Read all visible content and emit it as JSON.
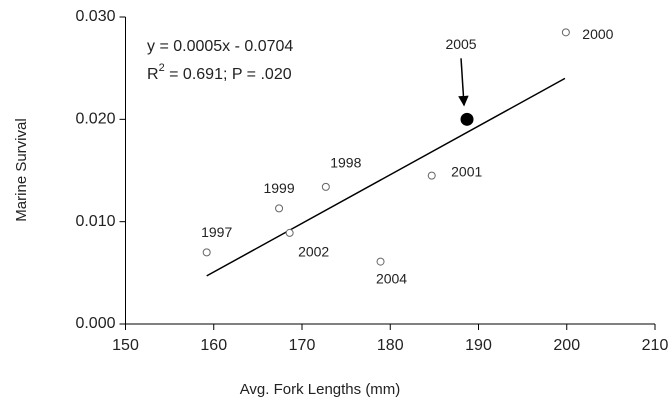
{
  "chart_data": {
    "type": "scatter",
    "x_label": "Avg. Fork Lengths (mm)",
    "y_label": "Marine Survival",
    "equation": "y = 0.0005x - 0.0704",
    "stats": {
      "prefix": "R",
      "superscript": "2",
      "text": " = 0.691; P = .020"
    },
    "points": {
      "labels": [
        "1997",
        "1998",
        "1999",
        "2000",
        "2001",
        "2002",
        "2004",
        "2005"
      ],
      "x": [
        159.2,
        172.7,
        167.4,
        199.9,
        184.7,
        168.6,
        178.9,
        188.7
      ],
      "y": [
        0.007,
        0.0134,
        0.0113,
        0.0285,
        0.0145,
        0.0089,
        0.0061,
        0.02
      ],
      "filled": [
        false,
        false,
        false,
        false,
        false,
        false,
        false,
        true
      ],
      "color": "#666666",
      "fill_color": "#000000"
    },
    "trendline": {
      "x": [
        159.2,
        199.8
      ],
      "y": [
        0.0047,
        0.024
      ],
      "color": "#000000"
    },
    "xlim": [
      150,
      210
    ],
    "xticks": [
      150,
      160,
      170,
      180,
      190,
      200,
      210
    ],
    "ylim": [
      0,
      0.03
    ],
    "yticks": [
      {
        "value": 0,
        "label": "0.000"
      },
      {
        "value": 0.01,
        "label": "0.010"
      },
      {
        "value": 0.02,
        "label": "0.020"
      },
      {
        "value": 0.03,
        "label": "0.030"
      }
    ],
    "grid": false
  }
}
